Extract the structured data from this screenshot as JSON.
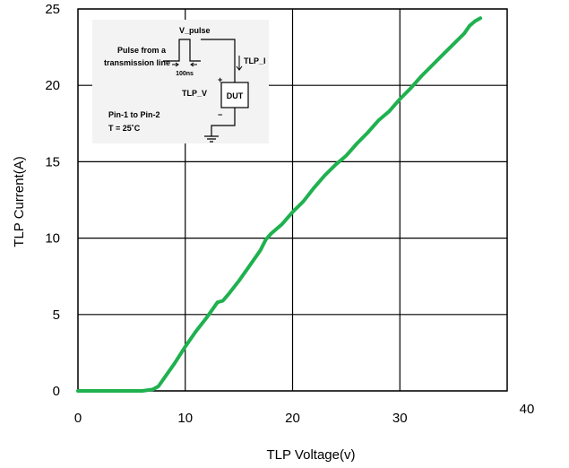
{
  "chart_data": {
    "type": "line",
    "xlabel": "TLP Voltage(v)",
    "ylabel": "TLP Current(A)",
    "xlim": [
      0,
      40
    ],
    "ylim": [
      0,
      25
    ],
    "x_ticks": [
      0,
      10,
      20,
      30,
      40
    ],
    "y_ticks": [
      0,
      5,
      10,
      15,
      20,
      25
    ],
    "grid": true,
    "legend": "none",
    "line_color": "#1fb14f",
    "series": [
      {
        "x": [
          0,
          2,
          4,
          6,
          7,
          7.5,
          8,
          9,
          10,
          11,
          12,
          13,
          13.5,
          14,
          15,
          16,
          17,
          17.5,
          18,
          19,
          20,
          21,
          22,
          23,
          24,
          25,
          26,
          27,
          28,
          29,
          30,
          31,
          32,
          33,
          34,
          35,
          36,
          36.5,
          37,
          37.5
        ],
        "y": [
          0,
          0,
          0,
          0,
          0.1,
          0.3,
          0.8,
          1.8,
          2.9,
          3.9,
          4.8,
          5.8,
          5.9,
          6.3,
          7.2,
          8.2,
          9.2,
          9.9,
          10.3,
          10.9,
          11.7,
          12.4,
          13.3,
          14.1,
          14.8,
          15.4,
          16.2,
          16.9,
          17.7,
          18.3,
          19.1,
          19.8,
          20.6,
          21.3,
          22.0,
          22.7,
          23.4,
          23.9,
          24.2,
          24.4
        ]
      }
    ]
  },
  "inset": {
    "v_pulse": "V_pulse",
    "pulse_from_line1": "Pulse from a",
    "pulse_from_line2": "transmission line",
    "duration": "100ns",
    "tlp_i": "TLP_I",
    "tlp_v": "TLP_V",
    "dut": "DUT",
    "plus": "+",
    "minus": "−",
    "pin_label": "Pin-1 to Pin-2",
    "temp_label": "T = 25˚C"
  }
}
